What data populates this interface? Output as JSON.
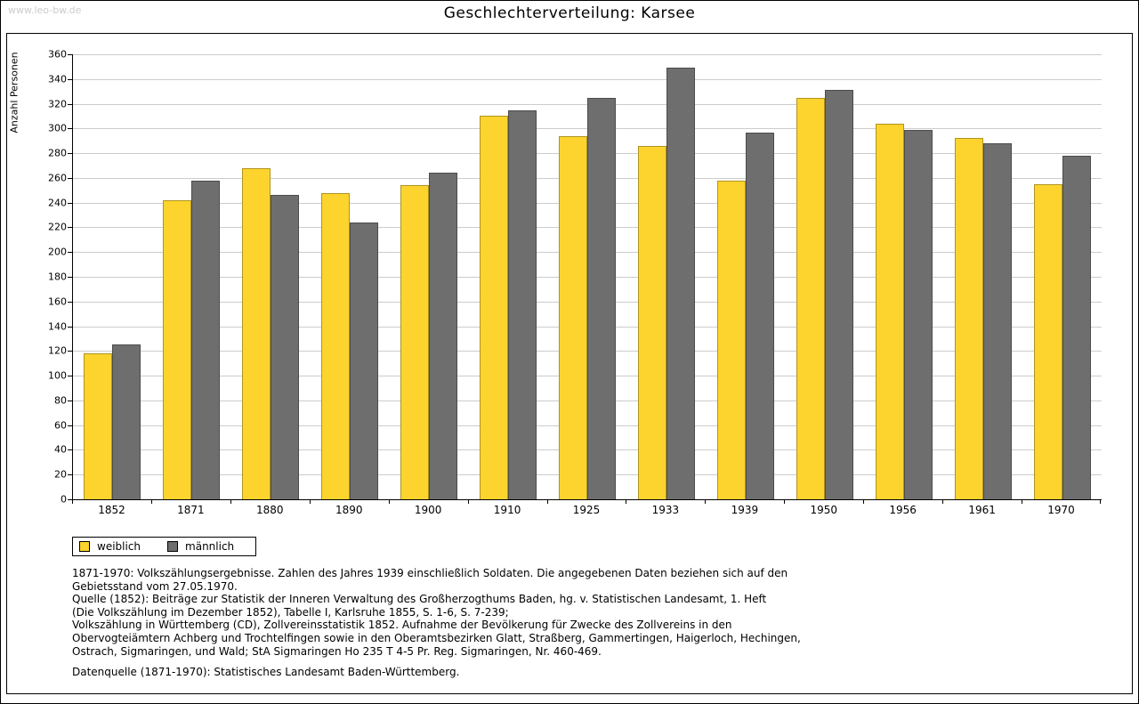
{
  "watermark": "www.leo-bw.de",
  "chart_data": {
    "type": "bar",
    "title": "Geschlechterverteilung: Karsee",
    "xlabel": "",
    "ylabel": "Anzahl Personen",
    "ylim": [
      0,
      360
    ],
    "ytick_step": 20,
    "grid": true,
    "legend_position": "bottom-left",
    "categories": [
      "1852",
      "1871",
      "1880",
      "1890",
      "1900",
      "1910",
      "1925",
      "1933",
      "1939",
      "1950",
      "1956",
      "1961",
      "1970"
    ],
    "series": [
      {
        "name": "weiblich",
        "color": "#FCD42D",
        "values": [
          118,
          242,
          268,
          248,
          254,
          310,
          294,
          286,
          258,
          325,
          304,
          292,
          255
        ]
      },
      {
        "name": "männlich",
        "color": "#6E6E6E",
        "values": [
          125,
          258,
          246,
          224,
          264,
          315,
          325,
          349,
          297,
          331,
          299,
          288,
          278
        ]
      }
    ]
  },
  "footer": {
    "lines": [
      "1871-1970: Volkszählungsergebnisse. Zahlen des Jahres 1939 einschließlich Soldaten. Die angegebenen Daten beziehen sich auf den",
      "Gebietsstand vom 27.05.1970.",
      "Quelle (1852): Beiträge zur Statistik der Inneren Verwaltung des Großherzogthums Baden, hg. v. Statistischen Landesamt, 1. Heft",
      "(Die Volkszählung im Dezember 1852), Tabelle I, Karlsruhe 1855, S. 1-6, S. 7-239;",
      "Volkszählung in Württemberg (CD), Zollvereinsstatistik 1852. Aufnahme der Bevölkerung für Zwecke des Zollvereins in den",
      "Obervogteiämtern Achberg und Trochtelfingen sowie in den Oberamtsbezirken Glatt, Straßberg, Gammertingen, Haigerloch, Hechingen,",
      "Ostrach, Sigmaringen, und Wald; StA Sigmaringen Ho 235 T 4-5 Pr. Reg. Sigmaringen, Nr. 460-469."
    ],
    "datasource": "Datenquelle (1871-1970): Statistisches Landesamt Baden-Württemberg."
  }
}
